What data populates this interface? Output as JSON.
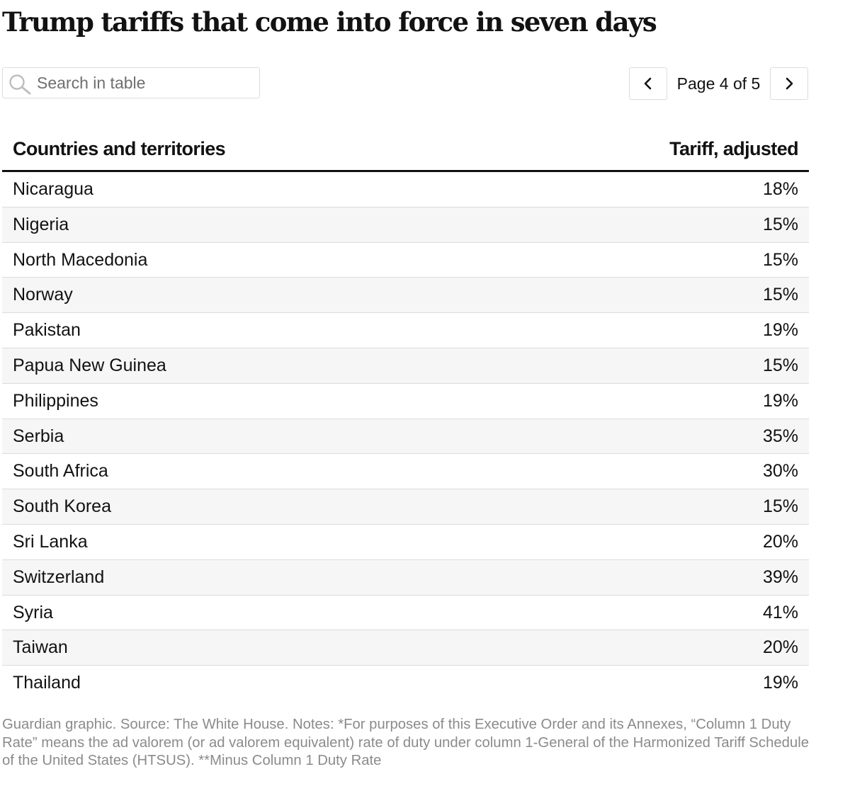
{
  "header": {
    "title": "Trump tariffs that come into force in seven days"
  },
  "search": {
    "placeholder": "Search in table",
    "value": ""
  },
  "pagination": {
    "label": "Page 4 of 5",
    "current_page": 4,
    "total_pages": 5
  },
  "table": {
    "columns": [
      "Countries and territories",
      "Tariff, adjusted"
    ],
    "rows": [
      {
        "country": "Nicaragua",
        "tariff": "18%"
      },
      {
        "country": "Nigeria",
        "tariff": "15%"
      },
      {
        "country": "North Macedonia",
        "tariff": "15%"
      },
      {
        "country": "Norway",
        "tariff": "15%"
      },
      {
        "country": "Pakistan",
        "tariff": "19%"
      },
      {
        "country": "Papua New Guinea",
        "tariff": "15%"
      },
      {
        "country": "Philippines",
        "tariff": "19%"
      },
      {
        "country": "Serbia",
        "tariff": "35%"
      },
      {
        "country": "South Africa",
        "tariff": "30%"
      },
      {
        "country": "South Korea",
        "tariff": "15%"
      },
      {
        "country": "Sri Lanka",
        "tariff": "20%"
      },
      {
        "country": "Switzerland",
        "tariff": "39%"
      },
      {
        "country": "Syria",
        "tariff": "41%"
      },
      {
        "country": "Taiwan",
        "tariff": "20%"
      },
      {
        "country": "Thailand",
        "tariff": "19%"
      }
    ]
  },
  "footnote": "Guardian graphic. Source: The White House. Notes: *For purposes of this Executive Order and its Annexes, “Column 1 Duty Rate” means the ad valorem (or ad valorem equivalent) rate of duty under column 1-General of the Harmonized Tariff Schedule of the United States (HTSUS). **Minus Column 1 Duty Rate",
  "icons": {
    "search": "search-icon",
    "prev": "chevron-left-icon",
    "next": "chevron-right-icon"
  },
  "colors": {
    "text": "#121212",
    "muted": "#8b8b8b",
    "border": "#dcdcdc",
    "row_alt": "#f6f6f6"
  }
}
